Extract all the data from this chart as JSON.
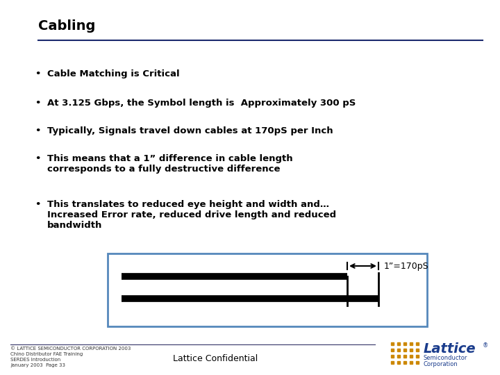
{
  "title": "Cabling",
  "title_color": "#000000",
  "title_fontsize": 14,
  "bg_color": "#ffffff",
  "bullet_color": "#000000",
  "bullet_fontsize": 9.5,
  "bullets": [
    "Cable Matching is Critical",
    "At 3.125 Gbps, the Symbol length is  Approximately 300 pS",
    "Typically, Signals travel down cables at 170pS per Inch",
    "This means that a 1” difference in cable length\ncorresponds to a fully destructive difference",
    "This translates to reduced eye height and width and…\nIncreased Error rate, reduced drive length and reduced\nbandwidth"
  ],
  "footer_left_line1": "© LATTICE SEMICONDUCTOR CORPORATION 2003",
  "footer_left_line2": "Chino Distributor FAE Training\nSERDES Introduction\nJanuary 2003  Page 33",
  "footer_center": "Lattice Confidential",
  "title_underline_color": "#1a2a6e",
  "box_color": "#5588bb",
  "diagram_label": "1”=170pS",
  "line_color": "#000000",
  "logo_dot_color": "#cc8800",
  "logo_text_color": "#1a3c8c"
}
